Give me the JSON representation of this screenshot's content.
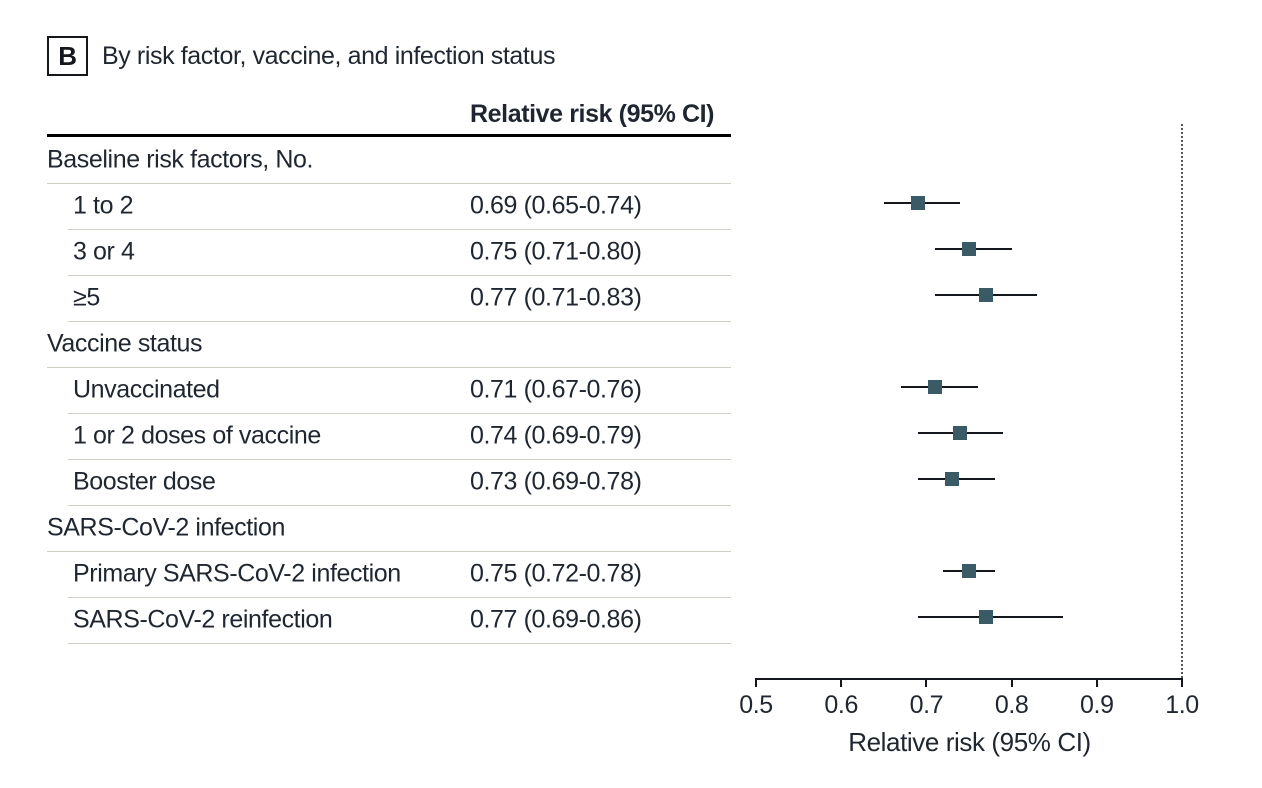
{
  "panel": {
    "label": "B",
    "title": "By risk factor, vaccine, and infection status"
  },
  "table": {
    "column_header": "Relative risk (95% CI)"
  },
  "colors": {
    "marker": "#3a5a66",
    "text": "#1f2630",
    "rule": "#000000",
    "separator": "#d1cec6",
    "axis": "#14171c",
    "reference_line": "#575757"
  },
  "chart_data": {
    "type": "scatter",
    "variant": "forest-plot",
    "panel_label": "B",
    "title": "By risk factor, vaccine, and infection status",
    "column_header": "Relative risk (95% CI)",
    "xlabel": "Relative risk (95% CI)",
    "xlim": [
      0.5,
      1.0
    ],
    "x_ticks": [
      "0.5",
      "0.6",
      "0.7",
      "0.8",
      "0.9",
      "1.0"
    ],
    "reference_line_x": 1.0,
    "grid": false,
    "legend": null,
    "rows": [
      {
        "label": "Baseline risk factors, No.",
        "group": true,
        "value_text": "",
        "rr": null,
        "ci_low": null,
        "ci_high": null
      },
      {
        "label": "1 to 2",
        "group": false,
        "value_text": "0.69 (0.65-0.74)",
        "rr": 0.69,
        "ci_low": 0.65,
        "ci_high": 0.74
      },
      {
        "label": "3 or 4",
        "group": false,
        "value_text": "0.75 (0.71-0.80)",
        "rr": 0.75,
        "ci_low": 0.71,
        "ci_high": 0.8
      },
      {
        "label": "≥5",
        "group": false,
        "value_text": "0.77 (0.71-0.83)",
        "rr": 0.77,
        "ci_low": 0.71,
        "ci_high": 0.83
      },
      {
        "label": "Vaccine status",
        "group": true,
        "value_text": "",
        "rr": null,
        "ci_low": null,
        "ci_high": null
      },
      {
        "label": "Unvaccinated",
        "group": false,
        "value_text": "0.71 (0.67-0.76)",
        "rr": 0.71,
        "ci_low": 0.67,
        "ci_high": 0.76
      },
      {
        "label": "1 or 2 doses of vaccine",
        "group": false,
        "value_text": "0.74 (0.69-0.79)",
        "rr": 0.74,
        "ci_low": 0.69,
        "ci_high": 0.79
      },
      {
        "label": "Booster dose",
        "group": false,
        "value_text": "0.73 (0.69-0.78)",
        "rr": 0.73,
        "ci_low": 0.69,
        "ci_high": 0.78
      },
      {
        "label": "SARS-CoV-2 infection",
        "group": true,
        "value_text": "",
        "rr": null,
        "ci_low": null,
        "ci_high": null
      },
      {
        "label": "Primary SARS-CoV-2 infection",
        "group": false,
        "value_text": "0.75 (0.72-0.78)",
        "rr": 0.75,
        "ci_low": 0.72,
        "ci_high": 0.78
      },
      {
        "label": "SARS-CoV-2 reinfection",
        "group": false,
        "value_text": "0.77 (0.69-0.86)",
        "rr": 0.77,
        "ci_low": 0.69,
        "ci_high": 0.86
      }
    ]
  }
}
